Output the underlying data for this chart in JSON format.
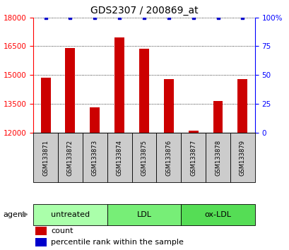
{
  "title": "GDS2307 / 200869_at",
  "samples": [
    "GSM133871",
    "GSM133872",
    "GSM133873",
    "GSM133874",
    "GSM133875",
    "GSM133876",
    "GSM133877",
    "GSM133878",
    "GSM133879"
  ],
  "counts": [
    14850,
    16420,
    13320,
    16950,
    16380,
    14780,
    12100,
    13650,
    14780
  ],
  "percentiles": [
    100,
    100,
    100,
    100,
    100,
    100,
    100,
    100,
    100
  ],
  "ylim_left": [
    12000,
    18000
  ],
  "ylim_right": [
    0,
    100
  ],
  "yticks_left": [
    12000,
    13500,
    15000,
    16500,
    18000
  ],
  "yticks_right": [
    0,
    25,
    50,
    75,
    100
  ],
  "groups": [
    {
      "label": "untreated",
      "indices": [
        0,
        1,
        2
      ],
      "color": "#aaffaa"
    },
    {
      "label": "LDL",
      "indices": [
        3,
        4,
        5
      ],
      "color": "#77ee77"
    },
    {
      "label": "ox-LDL",
      "indices": [
        6,
        7,
        8
      ],
      "color": "#55dd55"
    }
  ],
  "bar_color": "#cc0000",
  "percentile_color": "#0000cc",
  "bar_width": 0.4,
  "agent_label": "agent",
  "legend_count_label": "count",
  "legend_percentile_label": "percentile rank within the sample",
  "sample_box_color": "#cccccc",
  "left_tick_color": "red",
  "right_tick_color": "blue"
}
